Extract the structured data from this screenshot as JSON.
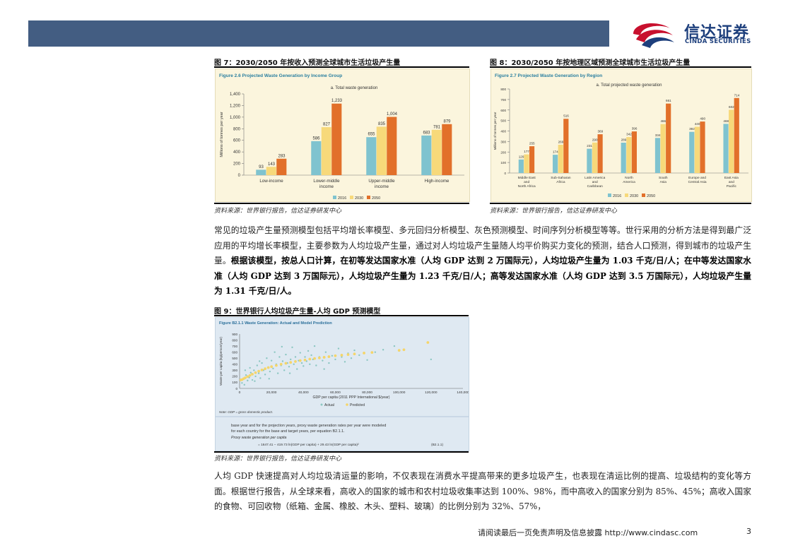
{
  "header": {
    "logo_cn": "信达证券",
    "logo_en": "CINDA SECURITIES"
  },
  "fig7": {
    "caption": "图 7：2030/2050 年按收入预测全球城市生活垃圾产生量",
    "inner_title": "Figure 2.6   Projected Waste Generation by Income Group",
    "source": "资料来源：世界银行报告，信达证券研发中心"
  },
  "fig8": {
    "caption": "图 8：2030/2050 年按地理区域预测全球城市生活垃圾产生量",
    "inner_title": "Figure 2.7   Projected Waste Generation by Region",
    "source": "资料来源：世界银行报告，信达证券研发中心"
  },
  "fig9": {
    "caption": "图 9：世界银行人均垃圾产生量-人均 GDP 预测模型",
    "inner_title": "Figure B2.1.1    Waste Generation: Actual and Model Prediction",
    "note": "Note: GDP = gross domestic product.",
    "text1": "base year and for the projection years, proxy waste generation rates per year were modeled",
    "text2": "for each country for the base and target years, per equation B2.1.1.",
    "text3": "Proxy waste generation per capita",
    "equation": "= 1647.41 − 419.73 ln(GDP per capita) + 29.43 ln(GDP per capita)²",
    "eq_num": "(B2.1.1)",
    "source": "资料来源：世界银行报告，信达证券研发中心"
  },
  "para1": {
    "plain": "常见的垃圾产生量预测模型包括平均增长率模型、多元回归分析模型、灰色预测模型、时间序列分析模型等等。世行采用的分析方法是得到最广泛应用的平均增长率模型，主要参数为人均垃圾产生量，通过对人均垃圾产生量随人均平价购买力变化的预测，结合人口预测，得到城市的垃圾产生量。",
    "bold": "根据该模型，按总人口计算，在初等发达国家水准（人均 GDP 达到 2 万国际元），人均垃圾产生量为 1.03 千克/日/人；在中等发达国家水准（人均 GDP 达到 3 万国际元），人均垃圾产生量为 1.23 千克/日/人；高等发达国家水准（人均 GDP 达到 3.5 万国际元），人均垃圾产生量为 1.31 千克/日/人。"
  },
  "para2": "人均 GDP 快速提高对人均垃圾清运量的影响，不仅表现在消费水平提高带来的更多垃圾产生，也表现在清运比例的提高、垃圾结构的变化等方面。根据世行报告，从全球来看，高收入的国家的城市和农村垃圾收集率达到 100%、98%，而中高收入的国家分别为 85%、45%；高收入国家的食物、可回收物（纸箱、金属、橡胶、木头、塑料、玻璃）的比例分别为 32%、57%，",
  "footer": {
    "text": "请阅读最后一页免责声明及信息披露 http://www.cindasc.com",
    "page": "3"
  },
  "colors": {
    "y2016": "#7fc3cf",
    "y2030": "#f7d97a",
    "y2050": "#e2702a",
    "header_bar": "#435d82",
    "logo_red": "#c8102e",
    "logo_blue": "#1d3f7c"
  },
  "chart_data": [
    {
      "type": "bar",
      "title": "a. Total waste generation",
      "ylabel": "Millions of tonnes per year",
      "ylim": [
        0,
        1400
      ],
      "yticks": [
        "0",
        "200",
        "400",
        "600",
        "800",
        "1,000",
        "1,200",
        "1,400"
      ],
      "categories": [
        "Low-income",
        "Lower-middle income",
        "Upper-middle income",
        "High-income"
      ],
      "cat_lines": [
        [
          "Low-income"
        ],
        [
          "Lower-middle",
          "income"
        ],
        [
          "Upper-middle",
          "income"
        ],
        [
          "High-income"
        ]
      ],
      "series": [
        {
          "name": "2016",
          "values": [
            93,
            586,
            655,
            683
          ],
          "labels": [
            "93",
            "586",
            "655",
            "683"
          ]
        },
        {
          "name": "2030",
          "values": [
            143,
            827,
            835,
            781
          ],
          "labels": [
            "143",
            "827",
            "835",
            "781"
          ]
        },
        {
          "name": "2050",
          "values": [
            283,
            1233,
            1004,
            879
          ],
          "labels": [
            "283",
            "1,233",
            "1,004",
            "879"
          ]
        }
      ]
    },
    {
      "type": "bar",
      "title": "a. Total projected waste generation",
      "ylabel": "Millions of tonnes per year",
      "ylim": [
        0,
        800
      ],
      "yticks": [
        "0",
        "100",
        "200",
        "300",
        "400",
        "500",
        "600",
        "700",
        "800"
      ],
      "categories": [
        "Middle East and North Africa",
        "Sub-Saharan Africa",
        "Latin America and Caribbean",
        "North America",
        "South Asia",
        "Europe and Central Asia",
        "East Asia and Pacific"
      ],
      "cat_lines": [
        [
          "Middle East",
          "and",
          "North Africa"
        ],
        [
          "Sub-Saharan",
          "Africa"
        ],
        [
          "Latin America",
          "and",
          "Caribbean"
        ],
        [
          "North",
          "America"
        ],
        [
          "South",
          "Asia"
        ],
        [
          "Europe and",
          "Central Asia"
        ],
        [
          "East Asia",
          "and",
          "Pacific"
        ]
      ],
      "series": [
        {
          "name": "2016",
          "values": [
            129,
            174,
            231,
            289,
            334,
            392,
            468
          ],
          "labels": [
            "129",
            "174",
            "231",
            "289",
            "334",
            "392",
            "468"
          ]
        },
        {
          "name": "2030",
          "values": [
            177,
            269,
            290,
            342,
            466,
            440,
            602
          ],
          "labels": [
            "177",
            "269",
            "290",
            "342",
            "466",
            "440",
            "602"
          ]
        },
        {
          "name": "2050",
          "values": [
            255,
            516,
            369,
            396,
            661,
            490,
            714
          ],
          "labels": [
            "255",
            "516",
            "369",
            "396",
            "661",
            "490",
            "714"
          ]
        }
      ]
    },
    {
      "type": "scatter",
      "xlabel": "GDP per capita (2011 PPP International $/year)",
      "ylabel": "Waste per capita (kg/person/year)",
      "xlim": [
        0,
        140000
      ],
      "ylim": [
        0,
        900
      ],
      "xticks": [
        "0",
        "20,000",
        "40,000",
        "60,000",
        "80,000",
        "100,000",
        "120,000",
        "140,000"
      ],
      "yticks": [
        "0",
        "100",
        "200",
        "300",
        "400",
        "500",
        "600",
        "700",
        "800",
        "900"
      ],
      "legend": [
        "Actual",
        "Predicted"
      ],
      "series": [
        {
          "name": "Actual",
          "points": [
            [
              1500,
              90
            ],
            [
              2500,
              160
            ],
            [
              3000,
              60
            ],
            [
              4000,
              220
            ],
            [
              5000,
              130
            ],
            [
              6000,
              180
            ],
            [
              7000,
              260
            ],
            [
              8000,
              140
            ],
            [
              9000,
              300
            ],
            [
              10000,
              200
            ],
            [
              11000,
              380
            ],
            [
              12000,
              250
            ],
            [
              13000,
              170
            ],
            [
              14000,
              420
            ],
            [
              15000,
              300
            ],
            [
              16000,
              230
            ],
            [
              17000,
              500
            ],
            [
              18000,
              350
            ],
            [
              19000,
              280
            ],
            [
              20000,
              460
            ],
            [
              21000,
              330
            ],
            [
              22000,
              600
            ],
            [
              23000,
              400
            ],
            [
              24000,
              250
            ],
            [
              25000,
              520
            ],
            [
              26000,
              380
            ],
            [
              27000,
              450
            ],
            [
              28000,
              300
            ],
            [
              29000,
              560
            ],
            [
              30000,
              420
            ],
            [
              31000,
              360
            ],
            [
              32000,
              480
            ],
            [
              33000,
              680
            ],
            [
              34000,
              400
            ],
            [
              35000,
              520
            ],
            [
              36000,
              320
            ],
            [
              37000,
              460
            ],
            [
              38000,
              590
            ],
            [
              39000,
              420
            ],
            [
              40000,
              370
            ],
            [
              41000,
              520
            ],
            [
              42000,
              450
            ],
            [
              43000,
              620
            ],
            [
              44000,
              400
            ],
            [
              45000,
              550
            ],
            [
              46000,
              480
            ],
            [
              48000,
              380
            ],
            [
              50000,
              520
            ],
            [
              52000,
              460
            ],
            [
              54000,
              600
            ],
            [
              56000,
              420
            ],
            [
              58000,
              540
            ],
            [
              60000,
              480
            ],
            [
              62000,
              660
            ],
            [
              64000,
              520
            ],
            [
              66000,
              440
            ],
            [
              68000,
              580
            ],
            [
              70000,
              500
            ],
            [
              72000,
              630
            ],
            [
              75000,
              550
            ],
            [
              80000,
              470
            ],
            [
              85000,
              600
            ],
            [
              90000,
              640
            ],
            [
              97000,
              700
            ],
            [
              100000,
              620
            ],
            [
              120000,
              480
            ],
            [
              3500,
              300
            ],
            [
              6500,
              340
            ],
            [
              9500,
              120
            ],
            [
              12500,
              450
            ],
            [
              18500,
              160
            ],
            [
              26500,
              690
            ],
            [
              31500,
              250
            ],
            [
              47000,
              700
            ],
            [
              53000,
              320
            ]
          ]
        },
        {
          "name": "Predicted",
          "points": [
            [
              800,
              140
            ],
            [
              1500,
              145
            ],
            [
              2500,
              160
            ],
            [
              3500,
              175
            ],
            [
              5000,
              195
            ],
            [
              6500,
              215
            ],
            [
              8000,
              235
            ],
            [
              10000,
              260
            ],
            [
              12000,
              285
            ],
            [
              14000,
              305
            ],
            [
              16000,
              325
            ],
            [
              18000,
              345
            ],
            [
              20000,
              360
            ],
            [
              23000,
              380
            ],
            [
              26000,
              400
            ],
            [
              29000,
              415
            ],
            [
              32000,
              430
            ],
            [
              35000,
              445
            ],
            [
              38000,
              460
            ],
            [
              41000,
              470
            ],
            [
              44000,
              485
            ],
            [
              47000,
              495
            ],
            [
              50000,
              505
            ],
            [
              53000,
              515
            ],
            [
              56000,
              525
            ],
            [
              60000,
              540
            ],
            [
              64000,
              550
            ],
            [
              68000,
              560
            ],
            [
              72000,
              570
            ],
            [
              78000,
              585
            ],
            [
              83000,
              595
            ],
            [
              100000,
              630
            ],
            [
              103000,
              640
            ],
            [
              118000,
              760
            ]
          ]
        }
      ]
    }
  ]
}
